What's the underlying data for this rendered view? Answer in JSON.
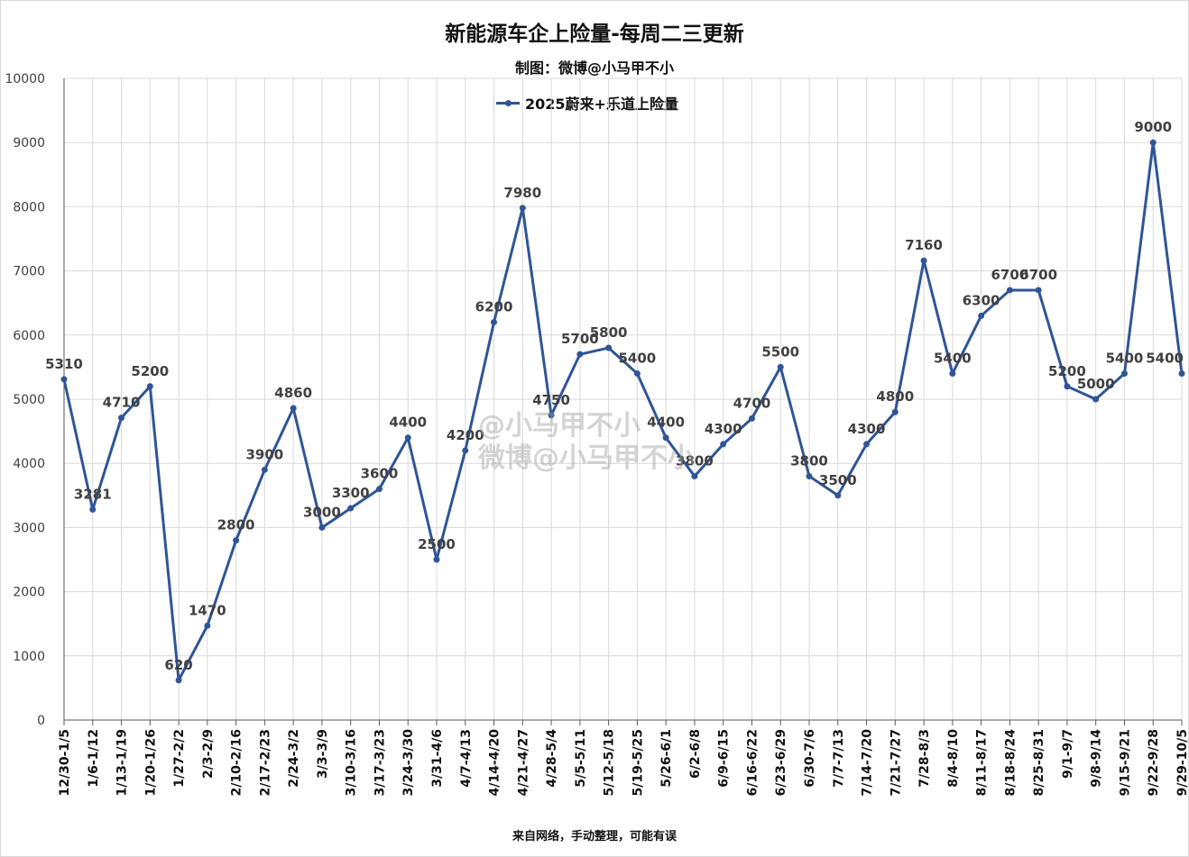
{
  "title": "新能源车企上险量-每周二三更新",
  "subtitle": "制图：微博@小马甲不小",
  "footnote": "来自网络，手动整理，可能有误",
  "watermark": [
    "@小马甲不小",
    "微博@小马甲不小"
  ],
  "colors": {
    "series": "#2f5597",
    "grid": "#d9d9d9",
    "text": "#404040"
  },
  "chart_data": {
    "type": "line",
    "title": "新能源车企上险量-每周二三更新",
    "xlabel": "",
    "ylabel": "",
    "ylim": [
      0,
      10000
    ],
    "yticks": [
      0,
      1000,
      2000,
      3000,
      4000,
      5000,
      6000,
      7000,
      8000,
      9000,
      10000
    ],
    "grid": true,
    "legend_position": "top-center",
    "categories": [
      "12/30-1/5",
      "1/6-1/12",
      "1/13-1/19",
      "1/20-1/26",
      "1/27-2/2",
      "2/3-2/9",
      "2/10-2/16",
      "2/17-2/23",
      "2/24-3/2",
      "3/3-3/9",
      "3/10-3/16",
      "3/17-3/23",
      "3/24-3/30",
      "3/31-4/6",
      "4/7-4/13",
      "4/14-4/20",
      "4/21-4/27",
      "4/28-5/4",
      "5/5-5/11",
      "5/12-5/18",
      "5/19-5/25",
      "5/26-6/1",
      "6/2-6/8",
      "6/9-6/15",
      "6/16-6/22",
      "6/23-6/29",
      "6/30-7/6",
      "7/7-7/13",
      "7/14-7/20",
      "7/21-7/27",
      "7/28-8/3",
      "8/4-8/10",
      "8/11-8/17",
      "8/18-8/24",
      "8/25-8/31",
      "9/1-9/7",
      "9/8-9/14",
      "9/15-9/21",
      "9/22-9/28",
      "9/29-10/5"
    ],
    "series": [
      {
        "name": "2025蔚来+乐道上险量",
        "values": [
          5310,
          3281,
          4710,
          5200,
          620,
          1470,
          2800,
          3900,
          4860,
          3000,
          3300,
          3600,
          4400,
          2500,
          4200,
          6200,
          7980,
          4750,
          5700,
          5800,
          5400,
          4400,
          3800,
          4300,
          4700,
          5500,
          3800,
          3500,
          4300,
          4800,
          7160,
          5400,
          6300,
          6700,
          6700,
          5200,
          5000,
          5400,
          9000,
          5400
        ]
      }
    ]
  }
}
